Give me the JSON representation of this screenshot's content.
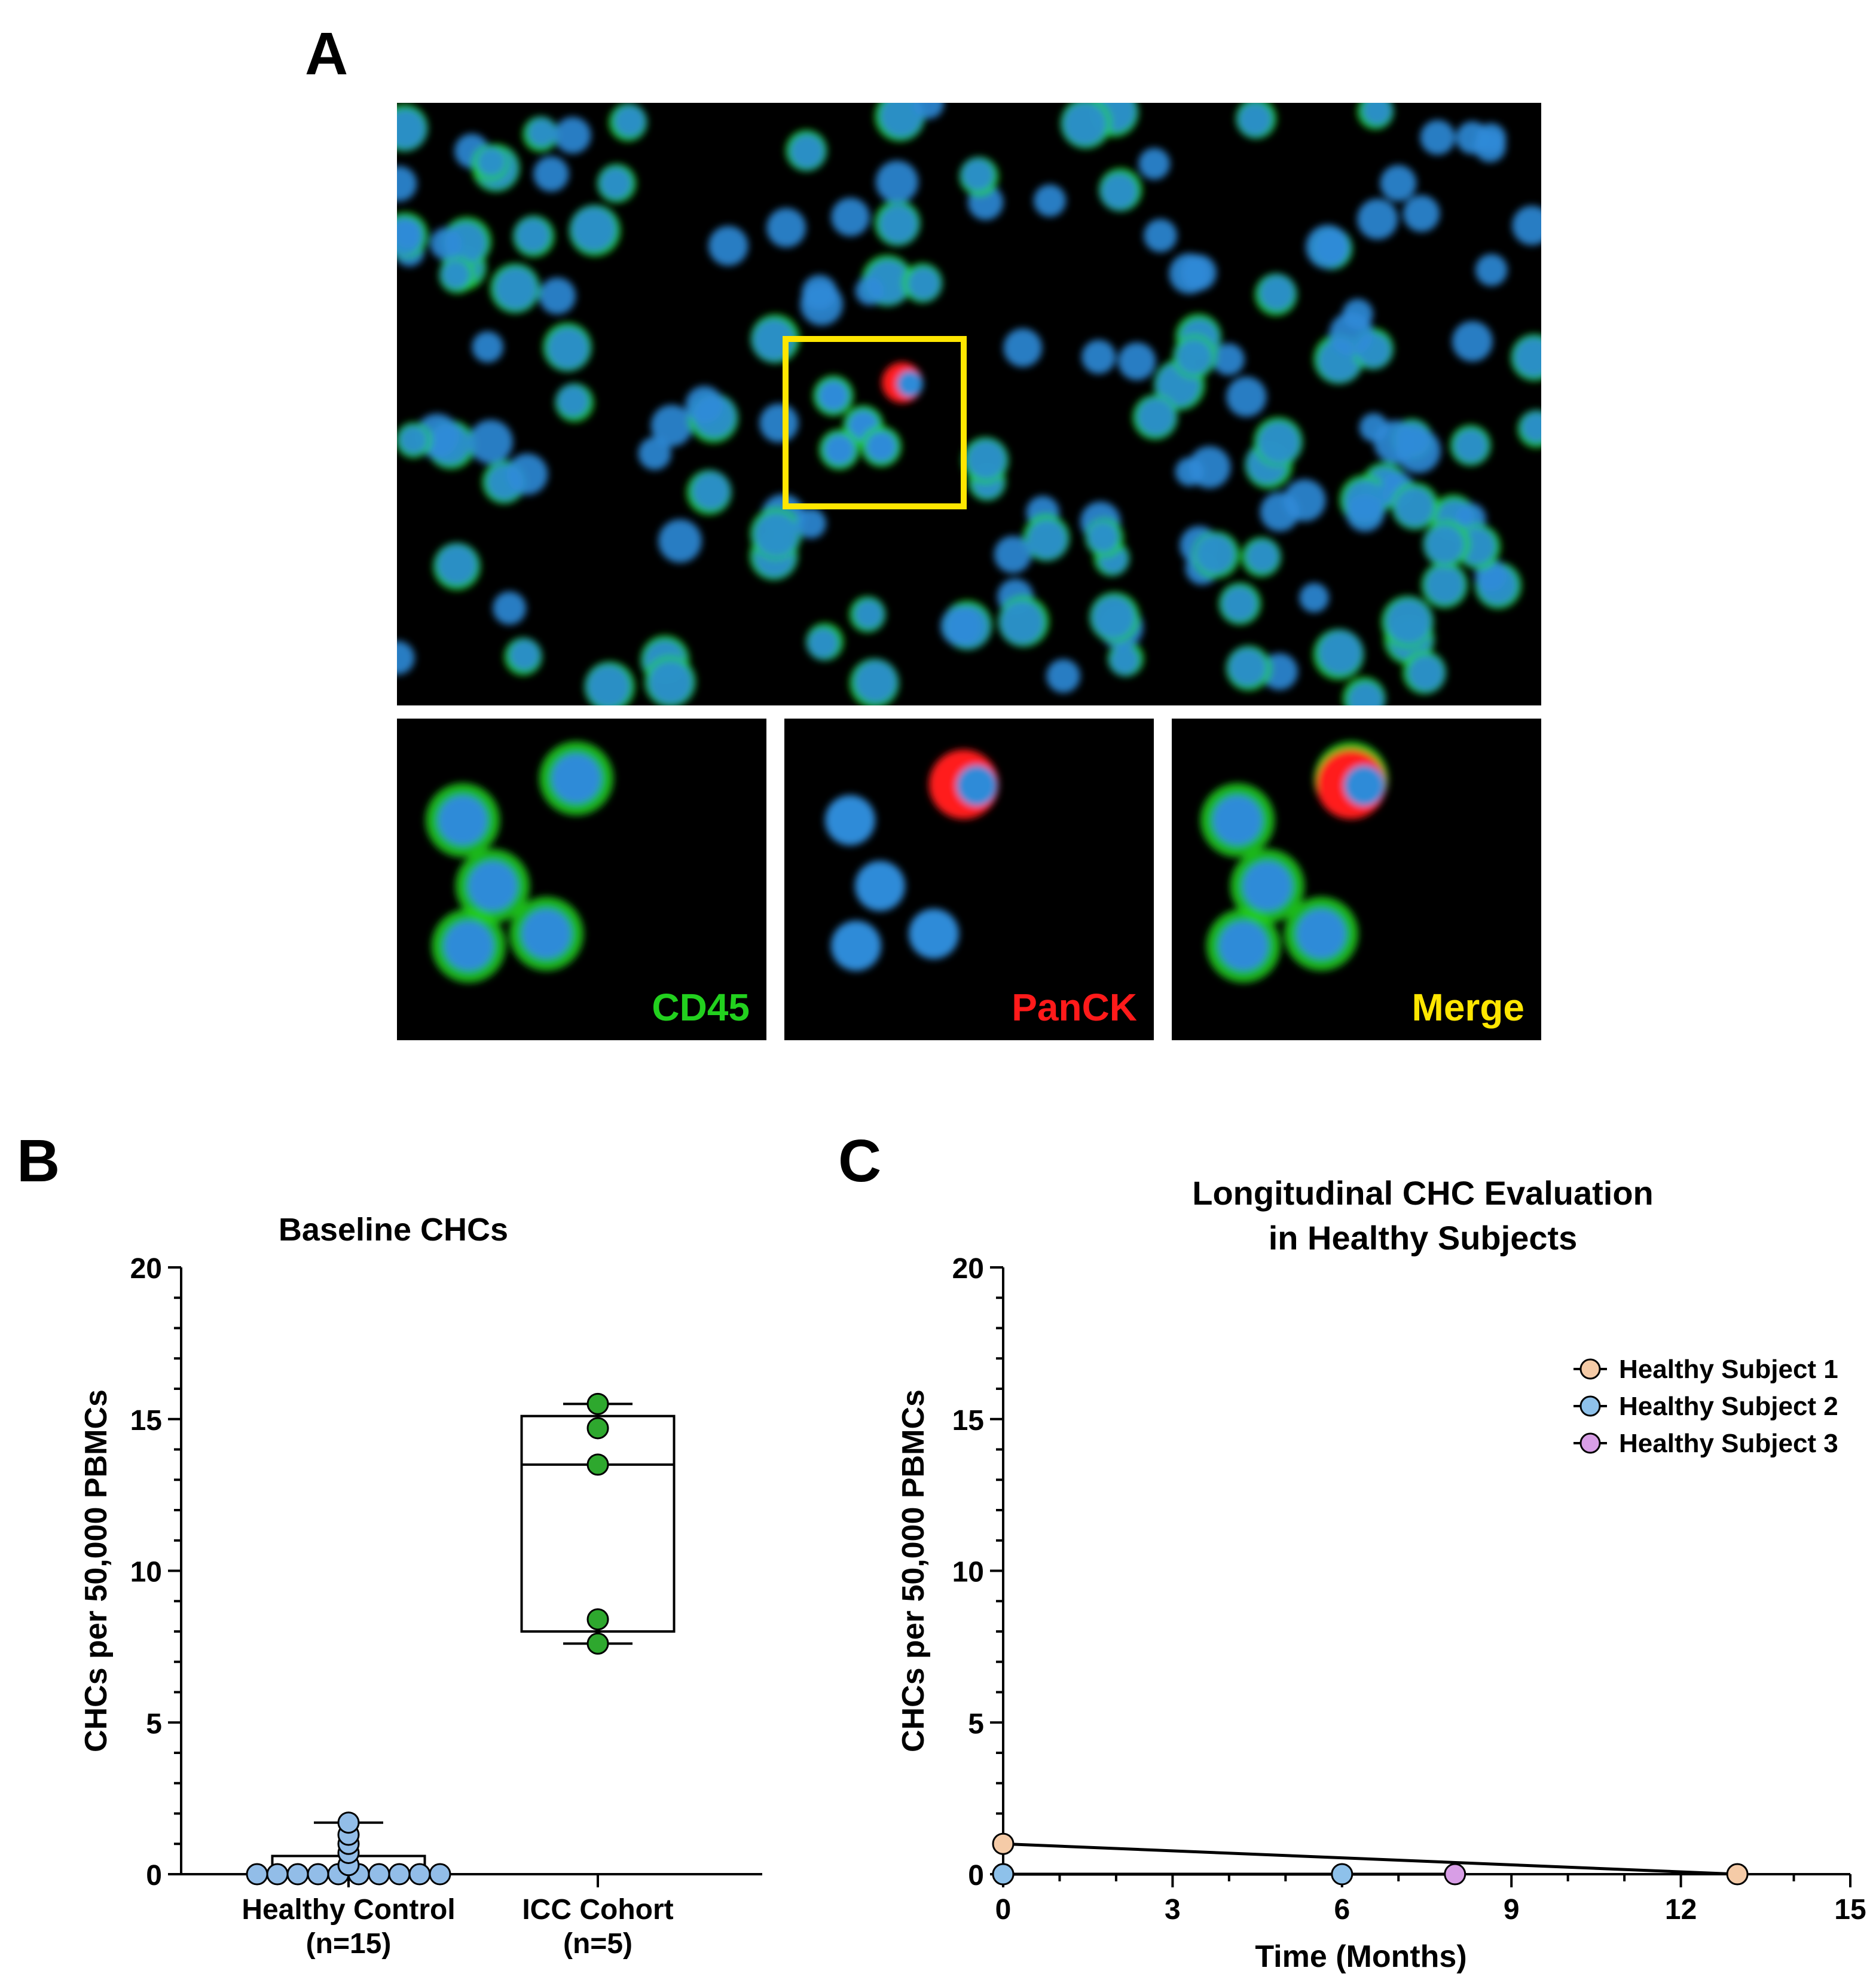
{
  "panels": {
    "a": {
      "letter": "A",
      "insets": [
        {
          "label": "CD45",
          "color": "#22d11e",
          "channel": "green"
        },
        {
          "label": "PanCK",
          "color": "#ff1a1a",
          "channel": "red"
        },
        {
          "label": "Merge",
          "color": "#ffe600",
          "channel": "merge"
        }
      ],
      "highlight_box_color": "#ffe600"
    },
    "b": {
      "letter": "B"
    },
    "c": {
      "letter": "C"
    }
  },
  "colors": {
    "nucleus_blue": "#2e8bd8",
    "cd45_green": "#22d11e",
    "panck_red": "#ff1a1a",
    "healthy_fill": "#92bde8",
    "icc_fill": "#2ea82e",
    "subject1": "#f5cba7",
    "subject2": "#8ec1ea",
    "subject3": "#d89ee6"
  },
  "chart_data": [
    {
      "type": "box",
      "title": "Baseline CHCs",
      "ylabel": "CHCs per 50,000 PBMCs",
      "ylim": [
        0,
        20
      ],
      "yticks": [
        0,
        5,
        10,
        15,
        20
      ],
      "grid": false,
      "groups": [
        {
          "label_line1": "Healthy Control",
          "label_line2": "(n=15)",
          "points": [
            0,
            0,
            0,
            0,
            0,
            0,
            0,
            0,
            0,
            0,
            0.3,
            0.7,
            1.0,
            1.3,
            1.7
          ],
          "box": {
            "q1": 0,
            "median": 0,
            "q3": 0.6,
            "min": 0,
            "max": 1.7
          }
        },
        {
          "label_line1": "ICC Cohort",
          "label_line2": "(n=5)",
          "points": [
            7.6,
            8.4,
            13.5,
            14.7,
            15.5
          ],
          "box": {
            "q1": 8.0,
            "median": 13.5,
            "q3": 15.1,
            "min": 7.6,
            "max": 15.5
          }
        }
      ]
    },
    {
      "type": "line",
      "title_line1": "Longitudinal CHC Evaluation",
      "title_line2": "in Healthy Subjects",
      "xlabel": "Time (Months)",
      "ylabel": "CHCs per 50,000 PBMCs",
      "xlim": [
        0,
        15
      ],
      "xticks": [
        0,
        3,
        6,
        9,
        12,
        15
      ],
      "ylim": [
        0,
        20
      ],
      "yticks": [
        0,
        5,
        10,
        15,
        20
      ],
      "legend_position": "top-right",
      "series": [
        {
          "name": "Healthy Subject 1",
          "x": [
            0,
            13
          ],
          "y": [
            1,
            0
          ]
        },
        {
          "name": "Healthy Subject 2",
          "x": [
            0,
            6
          ],
          "y": [
            0,
            0
          ]
        },
        {
          "name": "Healthy Subject 3",
          "x": [
            0,
            8
          ],
          "y": [
            0,
            0
          ]
        }
      ]
    }
  ]
}
